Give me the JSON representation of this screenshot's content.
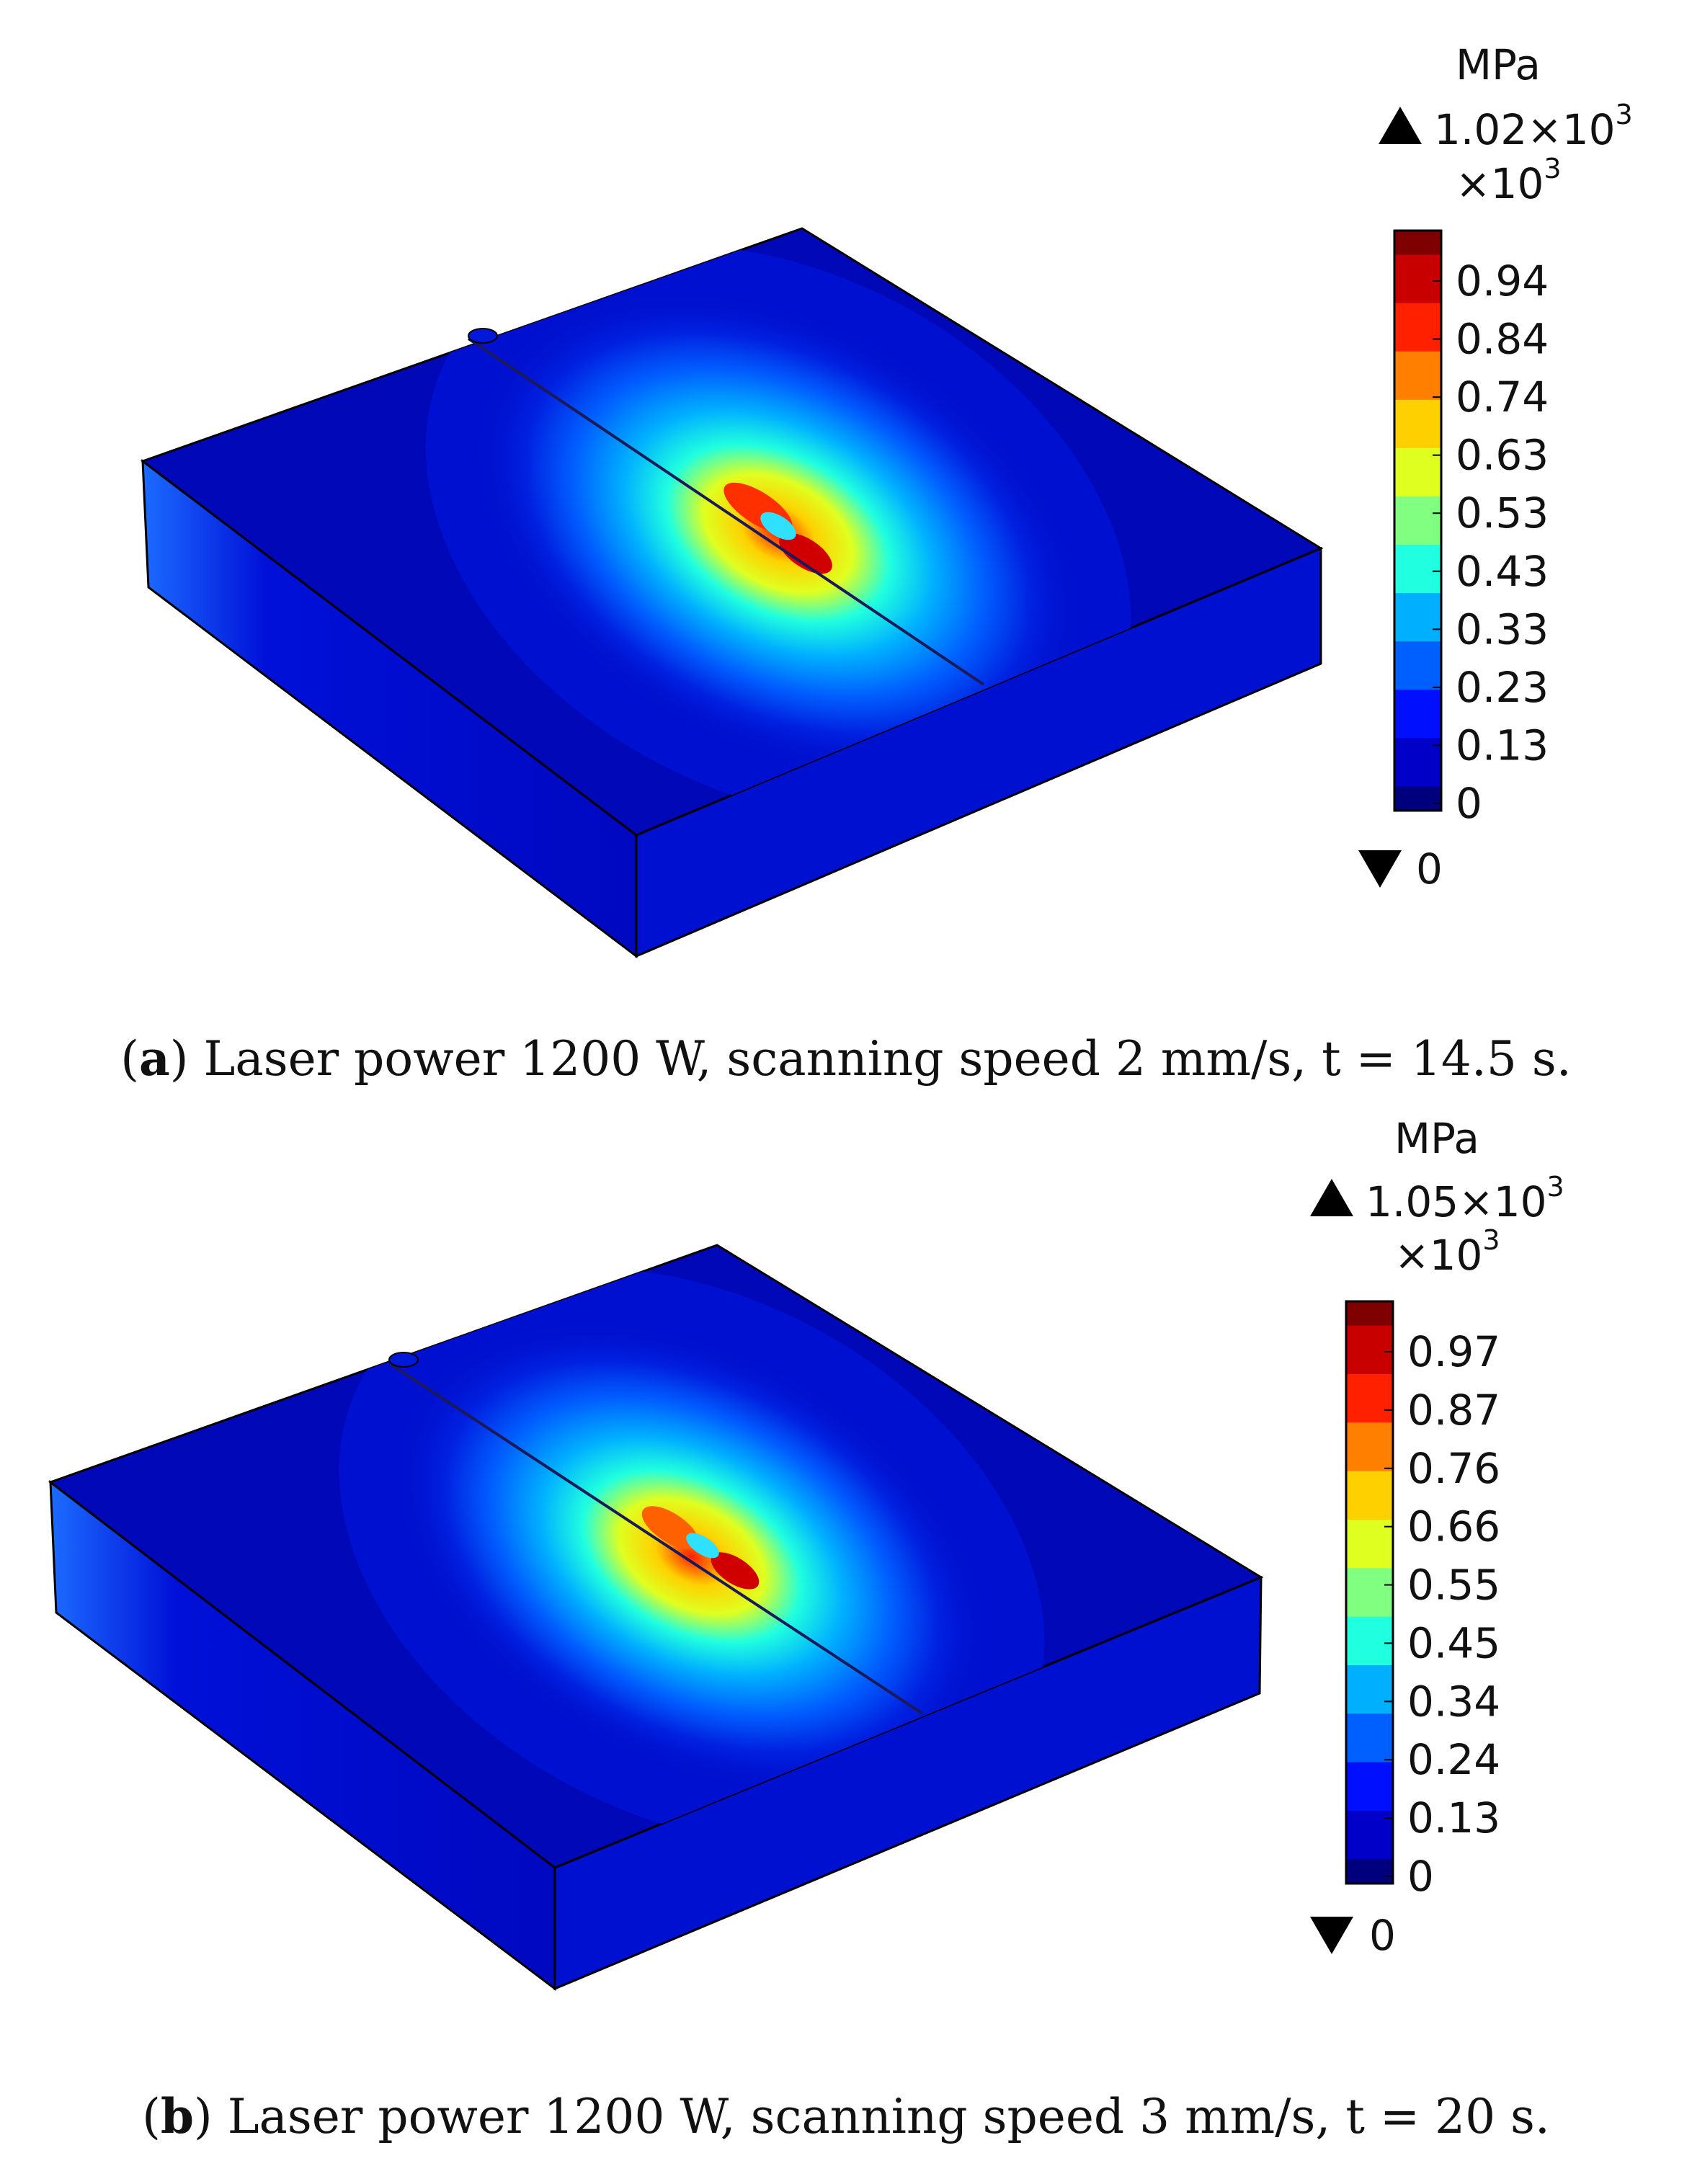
{
  "panels": [
    {
      "id": "a",
      "legend": {
        "unit": "MPa",
        "max": "1.02×10",
        "max_exp": "3",
        "scale_factor": "×10",
        "scale_exp": "3",
        "ticks": [
          "0.94",
          "0.84",
          "0.74",
          "0.63",
          "0.53",
          "0.43",
          "0.33",
          "0.23",
          "0.13",
          "0"
        ],
        "min": "0"
      },
      "caption": {
        "letter": "a",
        "text": "Laser power 1200 W, scanning speed 2 mm/s, t = 14.5 s."
      }
    },
    {
      "id": "b",
      "legend": {
        "unit": "MPa",
        "max": "1.05×10",
        "max_exp": "3",
        "scale_factor": "×10",
        "scale_exp": "3",
        "ticks": [
          "0.97",
          "0.87",
          "0.76",
          "0.66",
          "0.55",
          "0.45",
          "0.34",
          "0.24",
          "0.13",
          "0"
        ],
        "min": "0"
      },
      "caption": {
        "letter": "b",
        "text": "Laser power 1200 W, scanning speed 3 mm/s, t = 20 s."
      }
    }
  ],
  "colormap": [
    "#00007f",
    "#0000c8",
    "#0010ff",
    "#0060ff",
    "#00b0ff",
    "#20ffdf",
    "#80ff80",
    "#dfff20",
    "#ffd000",
    "#ff8000",
    "#ff2000",
    "#c80000",
    "#7f0000"
  ]
}
